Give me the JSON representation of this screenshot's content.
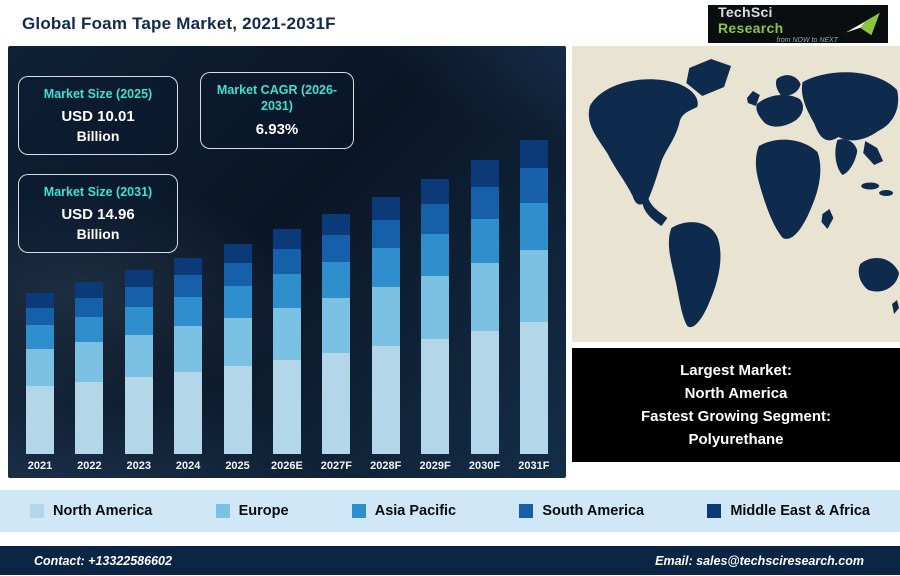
{
  "header": {
    "title": "Global Foam Tape Market, 2021-2031F",
    "logo": {
      "name_part1": "TechSci",
      "name_part2": "Research",
      "tagline": "from NOW to NEXT",
      "accent_color": "#8bc53f"
    }
  },
  "stats": [
    {
      "label": "Market Size (2025)",
      "value": "USD 10.01",
      "unit": "Billion"
    },
    {
      "label": "Market CAGR (2026-2031)",
      "value": "6.93%",
      "unit": ""
    },
    {
      "label": "Market Size (2031)",
      "value": "USD 14.96",
      "unit": "Billion"
    }
  ],
  "chart_data": {
    "type": "bar",
    "stacked": true,
    "unit": "USD Billion",
    "categories": [
      "2021",
      "2022",
      "2023",
      "2024",
      "2025",
      "2026E",
      "2027F",
      "2028F",
      "2029F",
      "2030F",
      "2031F"
    ],
    "series": [
      {
        "name": "North America",
        "color": "#b3d7e9",
        "values": [
          3.22,
          3.44,
          3.68,
          3.93,
          4.2,
          4.49,
          4.8,
          5.14,
          5.49,
          5.88,
          6.28
        ]
      },
      {
        "name": "Europe",
        "color": "#7bc1e4",
        "values": [
          1.76,
          1.88,
          2.01,
          2.15,
          2.3,
          2.46,
          2.63,
          2.82,
          3.01,
          3.22,
          3.44
        ]
      },
      {
        "name": "Asia Pacific",
        "color": "#2f8fcd",
        "values": [
          1.15,
          1.23,
          1.31,
          1.4,
          1.5,
          1.61,
          1.72,
          1.84,
          1.96,
          2.1,
          2.24
        ]
      },
      {
        "name": "South America",
        "color": "#1660a9",
        "values": [
          0.84,
          0.9,
          0.96,
          1.03,
          1.1,
          1.18,
          1.26,
          1.35,
          1.44,
          1.54,
          1.65
        ]
      },
      {
        "name": "Middle East & Africa",
        "color": "#0c3a78",
        "values": [
          0.69,
          0.74,
          0.79,
          0.85,
          0.91,
          0.96,
          1.03,
          1.09,
          1.18,
          1.25,
          1.35
        ]
      }
    ],
    "totals": [
      7.66,
      8.19,
      8.75,
      9.36,
      10.01,
      10.7,
      11.44,
      12.24,
      13.08,
      13.99,
      14.96
    ],
    "ylim": [
      0,
      16
    ],
    "grid": false,
    "legend_position": "bottom"
  },
  "map_caption": {
    "line1": "Largest Market:",
    "line2": "North America",
    "line3": "Fastest Growing Segment:",
    "line4": "Polyurethane"
  },
  "legend": {
    "items": [
      {
        "label": "North America",
        "color": "#b3d7e9"
      },
      {
        "label": "Europe",
        "color": "#7bc1e4"
      },
      {
        "label": "Asia Pacific",
        "color": "#2f8fcd"
      },
      {
        "label": "South America",
        "color": "#1660a9"
      },
      {
        "label": "Middle East & Africa",
        "color": "#0c3a78"
      }
    ]
  },
  "footer": {
    "contact": "Contact: +13322586602",
    "email": "Email: sales@techsciresearch.com"
  }
}
